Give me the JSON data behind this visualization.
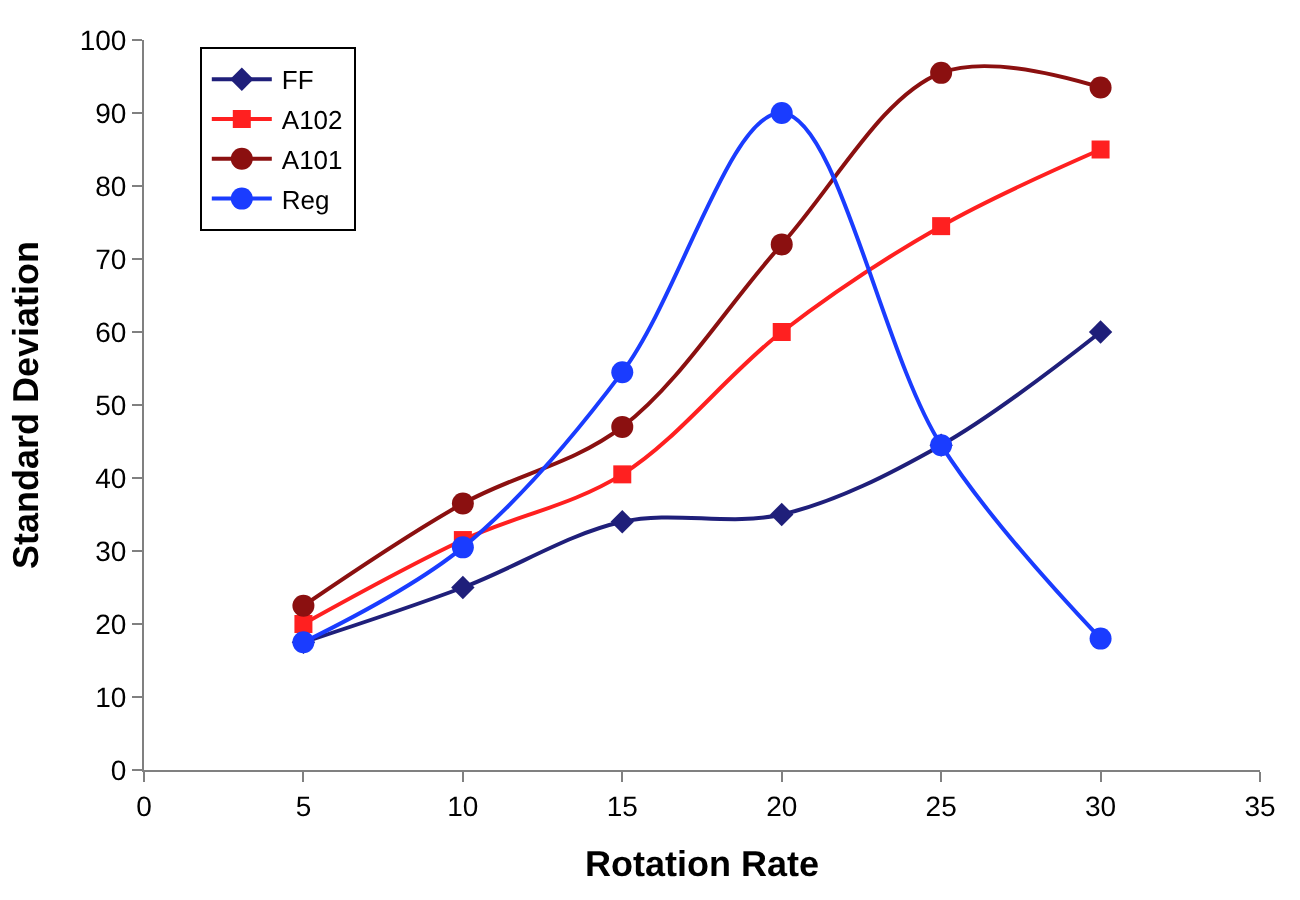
{
  "chart_data": {
    "type": "line",
    "xlabel": "Rotation Rate",
    "ylabel": "Standard Deviation",
    "x": [
      5,
      10,
      15,
      20,
      25,
      30
    ],
    "series": [
      {
        "name": "FF",
        "color": "#1f1f7a",
        "marker": "diamond",
        "values": [
          17.5,
          25,
          34,
          35,
          44.5,
          60
        ]
      },
      {
        "name": "A102",
        "color": "#ff2020",
        "marker": "square",
        "values": [
          20,
          31.5,
          40.5,
          60,
          74.5,
          85
        ]
      },
      {
        "name": "A101",
        "color": "#8b1010",
        "marker": "circle",
        "values": [
          22.5,
          36.5,
          47,
          72,
          95.5,
          93.5
        ]
      },
      {
        "name": "Reg",
        "color": "#1a3cff",
        "marker": "circle",
        "values": [
          17.5,
          30.5,
          54.5,
          90,
          44.5,
          18
        ]
      }
    ],
    "xlim": [
      0,
      35
    ],
    "xticks": [
      0,
      5,
      10,
      15,
      20,
      25,
      30,
      35
    ],
    "ylim": [
      0,
      100
    ],
    "yticks": [
      0,
      10,
      20,
      30,
      40,
      50,
      60,
      70,
      80,
      90,
      100
    ],
    "legend": "top left"
  }
}
